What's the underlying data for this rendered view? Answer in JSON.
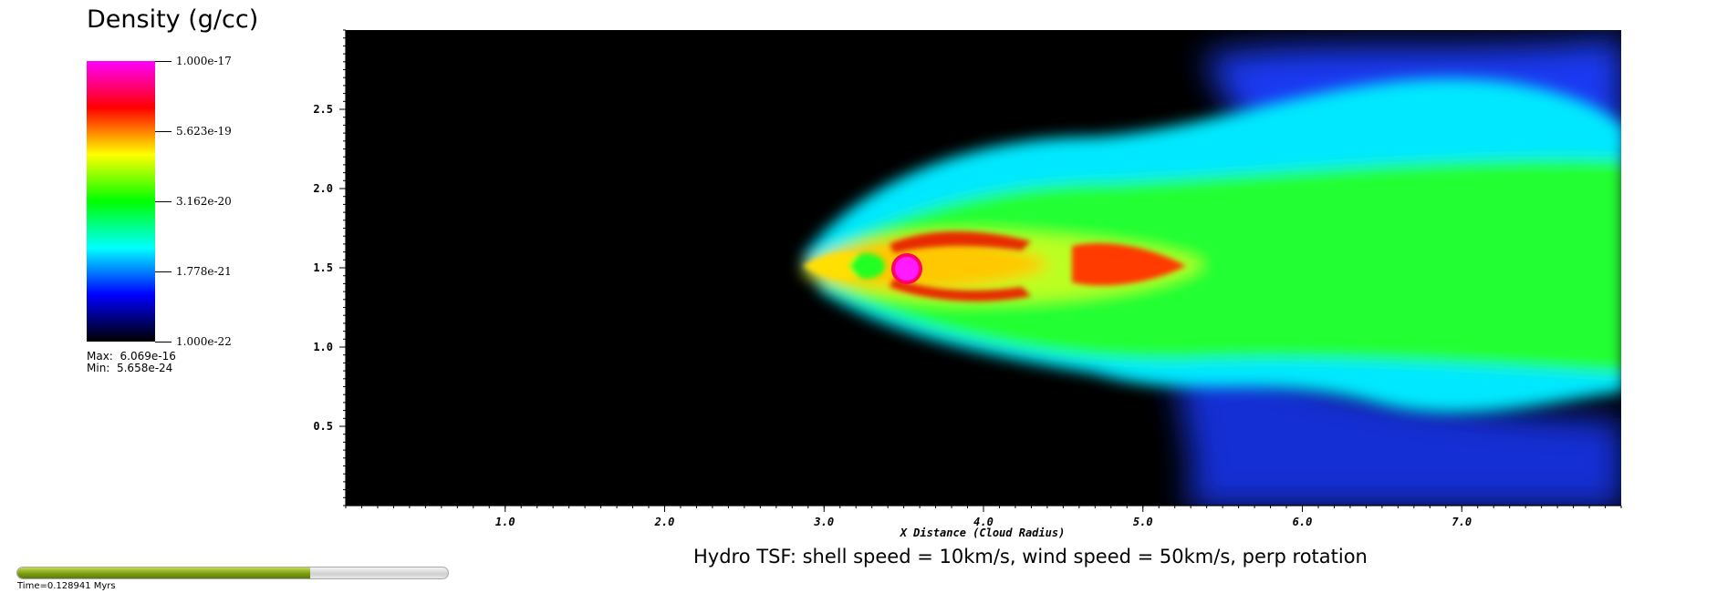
{
  "chart_data": {
    "type": "heatmap",
    "title": "Hydro TSF: shell speed = 10km/s, wind speed = 50km/s, perp rotation",
    "xlabel": "X Distance (Cloud Radius)",
    "ylabel": "",
    "xlim": [
      0,
      8.0
    ],
    "ylim": [
      0,
      3.0
    ],
    "x_ticks": [
      1.0,
      2.0,
      3.0,
      4.0,
      5.0,
      6.0,
      7.0
    ],
    "y_ticks": [
      0.5,
      1.0,
      1.5,
      2.0,
      2.5
    ],
    "colorbar": {
      "title": "Density (g/cc)",
      "scale": "log",
      "labels": [
        "1.000e-17",
        "5.623e-19",
        "3.162e-20",
        "1.778e-21",
        "1.000e-22"
      ],
      "range": [
        1e-22,
        1e-17
      ],
      "colormap": [
        "#000000",
        "#0000ff",
        "#00ffff",
        "#00ff00",
        "#ffff00",
        "#ff0000",
        "#ff00ff"
      ]
    },
    "max_label": "Max:",
    "max_value": "6.069e-16",
    "min_label": "Min:",
    "min_value": "5.658e-24",
    "features": {
      "dense_core_center": [
        3.55,
        1.48
      ],
      "tail_extent_x": [
        2.85,
        8.0
      ],
      "background": "#000000"
    }
  },
  "time": {
    "label": "Time=0.128941 Myrs",
    "progress": 0.68
  }
}
